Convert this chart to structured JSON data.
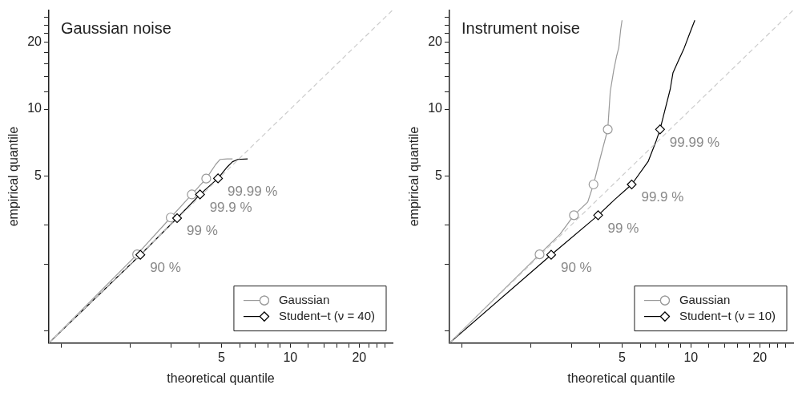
{
  "chart_data": [
    {
      "type": "line",
      "title": "Gaussian noise",
      "xlabel": "theoretical quantile",
      "ylabel": "empirical quantile",
      "log": "xy",
      "legend": "bottom right",
      "xlim": [
        0.88,
        28
      ],
      "ylim": [
        0.88,
        28
      ],
      "xticks": [
        {
          "value": 1,
          "label": null
        },
        {
          "value": 2,
          "label": null
        },
        {
          "value": 3,
          "label": null
        },
        {
          "value": 4,
          "label": null
        },
        5,
        {
          "value": 6,
          "label": null
        },
        {
          "value": 7,
          "label": null
        },
        {
          "value": 8,
          "label": null
        },
        {
          "value": 9,
          "label": null
        },
        10,
        {
          "value": 12,
          "label": null
        },
        {
          "value": 14,
          "label": null
        },
        {
          "value": 16,
          "label": null
        },
        {
          "value": 18,
          "label": null
        },
        20,
        {
          "value": 22,
          "label": null
        },
        {
          "value": 24,
          "label": null
        },
        {
          "value": 26,
          "label": null
        }
      ],
      "yticks": [
        {
          "value": 1,
          "label": null
        },
        {
          "value": 2,
          "label": null
        },
        {
          "value": 3,
          "label": null
        },
        5,
        10,
        {
          "value": 12,
          "label": null
        },
        {
          "value": 14,
          "label": null
        },
        {
          "value": 16,
          "label": null
        },
        {
          "value": 18,
          "label": null
        },
        20,
        {
          "value": 22,
          "label": null
        },
        {
          "value": 24,
          "label": null
        },
        {
          "value": 26,
          "label": null
        }
      ],
      "series": [
        {
          "type": "line",
          "color": "#cccccc",
          "line_style": "dashed",
          "x": [
            0.88,
            28
          ],
          "values": [
            0.88,
            28
          ]
        },
        {
          "type": "line",
          "color": "#999999",
          "line_style": "solid",
          "x": [
            0.88,
            2.14,
            3.0,
            3.71,
            4.29,
            4.72,
            4.93,
            5.3,
            5.59
          ],
          "values": [
            0.88,
            2.21,
            3.24,
            4.12,
            4.86,
            5.63,
            5.93,
            5.96,
            5.96
          ]
        },
        {
          "type": "scatter",
          "name": "Gaussian",
          "color": "#999999",
          "marker": "circle",
          "x": [
            2.14,
            3.0,
            3.71,
            4.29
          ],
          "values": [
            2.21,
            3.24,
            4.12,
            4.86
          ]
        },
        {
          "type": "line",
          "color": "#000000",
          "line_style": "solid",
          "x": [
            0.88,
            2.21,
            3.2,
            4.03,
            4.83,
            5.29,
            5.59,
            5.9,
            6.51
          ],
          "values": [
            0.88,
            2.2,
            3.22,
            4.12,
            4.87,
            5.47,
            5.79,
            5.93,
            5.96
          ]
        },
        {
          "type": "scatter",
          "name": "Student−t (ν = 40)",
          "color": "#000000",
          "marker": "diamond",
          "x": [
            2.21,
            3.2,
            4.03,
            4.83
          ],
          "values": [
            2.2,
            3.22,
            4.12,
            4.87
          ]
        }
      ],
      "annotations": [
        {
          "text": "90 %",
          "x": 2.21,
          "y": 2.2
        },
        {
          "text": "99 %",
          "x": 3.2,
          "y": 3.22
        },
        {
          "text": "99.9 %",
          "x": 4.03,
          "y": 4.12
        },
        {
          "text": "99.99 %",
          "x": 4.83,
          "y": 4.87
        }
      ]
    },
    {
      "type": "line",
      "title": "Instrument noise",
      "xlabel": "theoretical quantile",
      "ylabel": "empirical quantile",
      "log": "xy",
      "legend": "bottom right",
      "xlim": [
        0.88,
        28
      ],
      "ylim": [
        0.88,
        28
      ],
      "xticks": [
        {
          "value": 1,
          "label": null
        },
        {
          "value": 2,
          "label": null
        },
        {
          "value": 3,
          "label": null
        },
        {
          "value": 4,
          "label": null
        },
        5,
        {
          "value": 6,
          "label": null
        },
        {
          "value": 7,
          "label": null
        },
        {
          "value": 8,
          "label": null
        },
        {
          "value": 9,
          "label": null
        },
        10,
        {
          "value": 12,
          "label": null
        },
        {
          "value": 14,
          "label": null
        },
        {
          "value": 16,
          "label": null
        },
        {
          "value": 18,
          "label": null
        },
        20,
        {
          "value": 22,
          "label": null
        },
        {
          "value": 24,
          "label": null
        },
        {
          "value": 26,
          "label": null
        }
      ],
      "yticks": [
        {
          "value": 1,
          "label": null
        },
        {
          "value": 2,
          "label": null
        },
        {
          "value": 3,
          "label": null
        },
        5,
        10,
        {
          "value": 12,
          "label": null
        },
        {
          "value": 14,
          "label": null
        },
        {
          "value": 16,
          "label": null
        },
        {
          "value": 18,
          "label": null
        },
        20,
        {
          "value": 22,
          "label": null
        },
        {
          "value": 24,
          "label": null
        },
        {
          "value": 26,
          "label": null
        }
      ],
      "series": [
        {
          "type": "line",
          "color": "#cccccc",
          "line_style": "dashed",
          "x": [
            0.88,
            28
          ],
          "values": [
            0.88,
            28
          ]
        },
        {
          "type": "line",
          "color": "#999999",
          "line_style": "solid",
          "x": [
            0.88,
            2.18,
            2.68,
            3.08,
            3.54,
            3.75,
            4.06,
            4.33,
            4.44,
            4.6,
            4.73,
            4.84,
            4.93,
            5.0
          ],
          "values": [
            0.88,
            2.21,
            2.73,
            3.32,
            3.81,
            4.57,
            6.3,
            8.1,
            12.0,
            15.0,
            17.3,
            19.0,
            22.8,
            25.2
          ]
        },
        {
          "type": "scatter",
          "name": "Gaussian",
          "color": "#999999",
          "marker": "circle",
          "x": [
            2.18,
            3.08,
            3.75,
            4.33
          ],
          "values": [
            2.21,
            3.32,
            4.57,
            8.1
          ]
        },
        {
          "type": "line",
          "color": "#000000",
          "line_style": "solid",
          "x": [
            0.88,
            2.45,
            3.93,
            4.66,
            5.51,
            6.5,
            7.07,
            7.33,
            7.69,
            8.12,
            8.35,
            8.83,
            9.33,
            9.9,
            10.4
          ],
          "values": [
            0.88,
            2.2,
            3.32,
            3.92,
            4.57,
            5.8,
            7.25,
            8.1,
            9.85,
            12.3,
            14.6,
            16.6,
            18.8,
            22.1,
            25.2
          ]
        },
        {
          "type": "scatter",
          "name": "Student−t (ν = 10)",
          "color": "#000000",
          "marker": "diamond",
          "x": [
            2.45,
            3.93,
            5.51,
            7.33
          ],
          "values": [
            2.2,
            3.32,
            4.57,
            8.1
          ]
        }
      ],
      "annotations": [
        {
          "text": "90 %",
          "x": 2.45,
          "y": 2.2
        },
        {
          "text": "99 %",
          "x": 3.93,
          "y": 3.32
        },
        {
          "text": "99.9 %",
          "x": 5.51,
          "y": 4.57
        },
        {
          "text": "99.99 %",
          "x": 7.33,
          "y": 8.1
        }
      ]
    }
  ]
}
